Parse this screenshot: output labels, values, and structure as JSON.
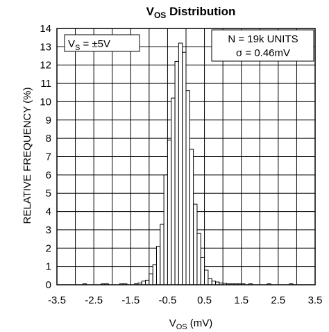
{
  "chart_data": {
    "type": "bar",
    "title": {
      "main": "V",
      "sub": "OS",
      "rest": " Distribution"
    },
    "xlabel": {
      "main": "V",
      "sub": "OS",
      "rest": " (mV)"
    },
    "ylabel": "RELATIVE FREQUENCY  (%)",
    "xlim": [
      -3.5,
      3.5
    ],
    "ylim": [
      0,
      14
    ],
    "xticks": [
      -3.5,
      -2.5,
      -1.5,
      -0.5,
      0.5,
      1.5,
      2.5,
      3.5
    ],
    "xtick_labels": [
      "-3.5",
      "-2.5",
      "-1.5",
      "-0.5",
      "0.5",
      "1.5",
      "2.5",
      "3.5"
    ],
    "yticks": [
      0,
      1,
      2,
      3,
      4,
      5,
      6,
      7,
      8,
      9,
      10,
      11,
      12,
      13,
      14
    ],
    "ytick_labels": [
      "0",
      "1",
      "2",
      "3",
      "4",
      "5",
      "6",
      "7",
      "8",
      "9",
      "10",
      "11",
      "12",
      "13",
      "14"
    ],
    "grid": true,
    "bin_width": 0.1,
    "bin_centers": [
      -2.75,
      -2.25,
      -2.15,
      -1.75,
      -1.65,
      -1.35,
      -1.25,
      -1.15,
      -1.05,
      -0.95,
      -0.85,
      -0.75,
      -0.65,
      -0.55,
      -0.45,
      -0.35,
      -0.25,
      -0.15,
      -0.05,
      0.05,
      0.15,
      0.25,
      0.35,
      0.45,
      0.55,
      0.65,
      0.75,
      0.85,
      0.95,
      1.05,
      1.15,
      1.25,
      1.35,
      1.45,
      1.55,
      1.75,
      2.25,
      2.85
    ],
    "values": [
      0.05,
      0.05,
      0.05,
      0.05,
      0.05,
      0.05,
      0.1,
      0.2,
      0.25,
      0.6,
      1.1,
      2.1,
      3.3,
      6.0,
      7.9,
      10.2,
      12.2,
      13.2,
      12.7,
      10.6,
      7.4,
      4.4,
      2.8,
      1.5,
      0.8,
      0.35,
      0.2,
      0.15,
      0.1,
      0.08,
      0.05,
      0.05,
      0.05,
      0.05,
      0.05,
      0.05,
      0.05,
      0.05
    ],
    "annotations": [
      {
        "id": "supply",
        "lines": [
          {
            "main": "V",
            "sub": "S",
            "rest": " = ±5V"
          }
        ]
      },
      {
        "id": "stats",
        "lines": [
          {
            "text": "N = 19k UNITS"
          },
          {
            "text": "σ = 0.46mV"
          }
        ]
      }
    ]
  }
}
